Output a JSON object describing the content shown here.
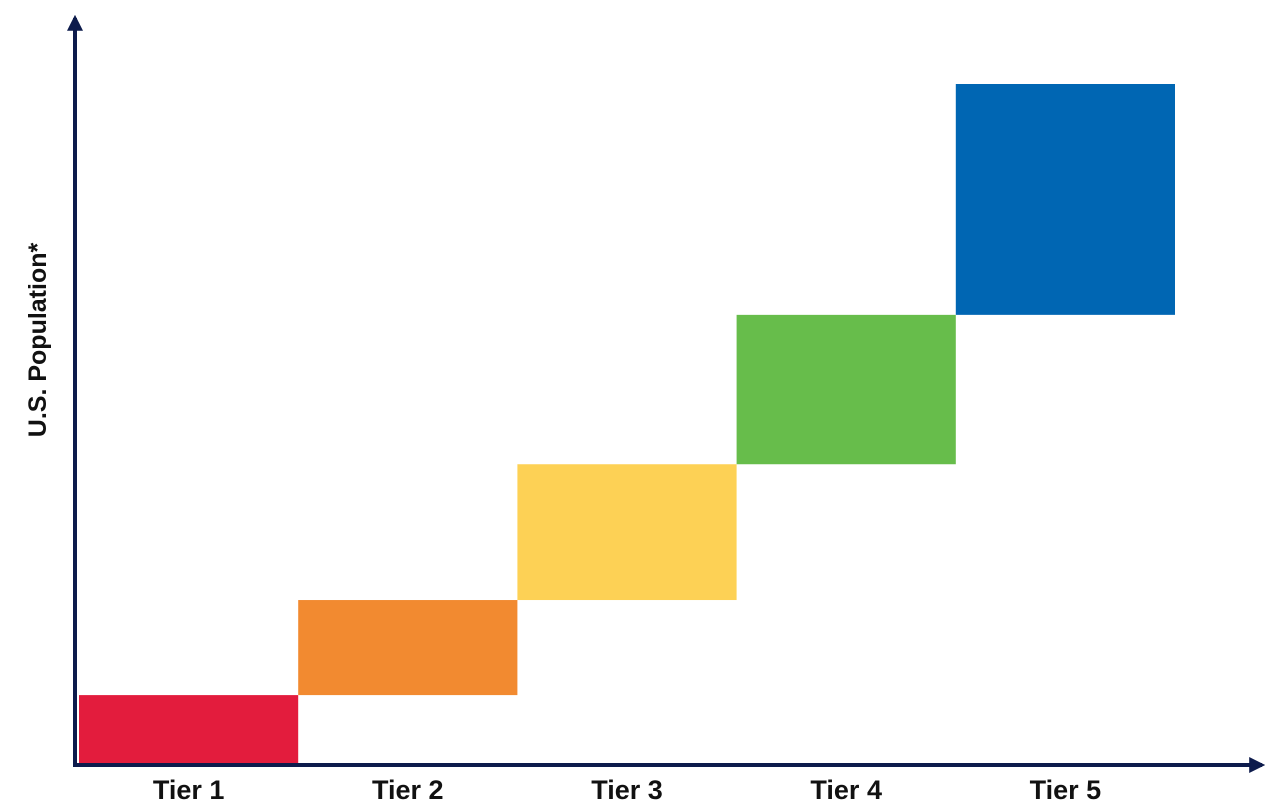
{
  "chart_data": {
    "type": "bar",
    "subtype": "floating-staircase",
    "title": "",
    "xlabel": "",
    "ylabel": "U.S. Population*",
    "categories": [
      "Tier 1",
      "Tier 2",
      "Tier 3",
      "Tier 4",
      "Tier 5"
    ],
    "ranges": [
      {
        "category": "Tier 1",
        "low": 0.0,
        "high": 0.1,
        "color": "#e31c3d"
      },
      {
        "category": "Tier 2",
        "low": 0.1,
        "high": 0.24,
        "color": "#f28a30"
      },
      {
        "category": "Tier 3",
        "low": 0.24,
        "high": 0.44,
        "color": "#fdd155"
      },
      {
        "category": "Tier 4",
        "low": 0.44,
        "high": 0.66,
        "color": "#67bd4b"
      },
      {
        "category": "Tier 5",
        "low": 0.66,
        "high": 1.0,
        "color": "#0066b3"
      }
    ],
    "y_scale": "relative (no numeric ticks shown)",
    "ylim": [
      0,
      1
    ],
    "grid": false,
    "legend": "none",
    "axis_color": "#0d1b4c"
  }
}
